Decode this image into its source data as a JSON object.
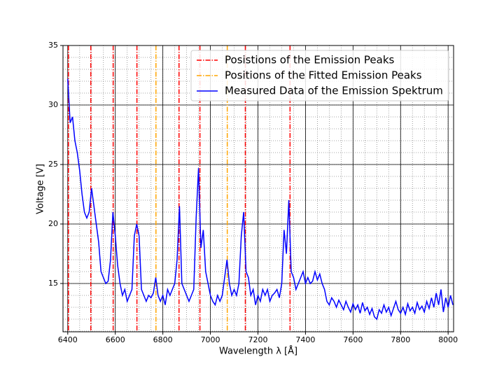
{
  "chart_data": {
    "type": "line",
    "xlabel": "Wavelength λ [Å]",
    "ylabel": "Voltage [V]",
    "xlim": [
      6380,
      8023
    ],
    "ylim": [
      10.94,
      35
    ],
    "xticks": [
      6400,
      6600,
      6800,
      7000,
      7200,
      7400,
      7600,
      7800,
      8000
    ],
    "yticks": [
      15,
      20,
      25,
      30,
      35
    ],
    "grid": true,
    "minor_grid": true,
    "legend": "upper right",
    "vlines": [
      {
        "name": "Posistions of the Emission Peaks",
        "color": "#ff0000",
        "x": [
          6403,
          6497,
          6591,
          6691,
          6868,
          6956,
          7147,
          7335
        ]
      },
      {
        "name": "Positions of the Fitted Emission Peaks",
        "color": "#ffa500",
        "x": [
          6771,
          7071
        ]
      }
    ],
    "series": [
      {
        "name": "Measured Data of the Emission Spektrum",
        "color": "#0000ff",
        "x": [
          6400,
          6410,
          6420,
          6430,
          6440,
          6450,
          6460,
          6470,
          6480,
          6490,
          6500,
          6510,
          6520,
          6530,
          6540,
          6550,
          6560,
          6570,
          6580,
          6590,
          6600,
          6610,
          6620,
          6630,
          6640,
          6650,
          6660,
          6670,
          6680,
          6690,
          6700,
          6710,
          6720,
          6730,
          6740,
          6750,
          6760,
          6770,
          6780,
          6790,
          6800,
          6810,
          6820,
          6830,
          6840,
          6850,
          6860,
          6870,
          6880,
          6890,
          6900,
          6910,
          6920,
          6930,
          6940,
          6950,
          6960,
          6970,
          6980,
          6990,
          7000,
          7010,
          7020,
          7030,
          7040,
          7050,
          7060,
          7070,
          7080,
          7090,
          7100,
          7110,
          7120,
          7130,
          7140,
          7150,
          7160,
          7170,
          7180,
          7190,
          7200,
          7210,
          7220,
          7230,
          7240,
          7250,
          7260,
          7270,
          7280,
          7290,
          7300,
          7310,
          7320,
          7330,
          7340,
          7350,
          7360,
          7370,
          7380,
          7390,
          7400,
          7410,
          7420,
          7430,
          7440,
          7450,
          7460,
          7470,
          7480,
          7490,
          7500,
          7510,
          7520,
          7530,
          7540,
          7550,
          7560,
          7570,
          7580,
          7590,
          7600,
          7610,
          7620,
          7630,
          7640,
          7650,
          7660,
          7670,
          7680,
          7690,
          7700,
          7710,
          7720,
          7730,
          7740,
          7750,
          7760,
          7770,
          7780,
          7790,
          7800,
          7810,
          7820,
          7830,
          7840,
          7850,
          7860,
          7870,
          7880,
          7890,
          7900,
          7910,
          7920,
          7930,
          7940,
          7950,
          7960,
          7970,
          7980,
          7990,
          8000,
          8010,
          8020
        ],
        "values": [
          32.2,
          28.5,
          29,
          27,
          26,
          24.5,
          22.5,
          21,
          20.5,
          21,
          23,
          21.5,
          20,
          18.5,
          16,
          15.5,
          15,
          15.2,
          17,
          21,
          19,
          16.5,
          15,
          14,
          14.5,
          13.5,
          14,
          14.5,
          19,
          20,
          19,
          14.5,
          14,
          13.5,
          14,
          13.8,
          14.2,
          15.5,
          14,
          13.5,
          14,
          13.2,
          14.5,
          14,
          14.5,
          15,
          17,
          21.5,
          15,
          14.5,
          14,
          13.5,
          14,
          14.5,
          20.5,
          24.7,
          18,
          19.5,
          16,
          15,
          14,
          13.5,
          13.2,
          14,
          13.5,
          14,
          15.5,
          17,
          15,
          14,
          14.5,
          14,
          15,
          19,
          21,
          16,
          15.5,
          14,
          14.5,
          13.2,
          14,
          13.5,
          14.5,
          14,
          14.5,
          13.5,
          14,
          14.2,
          14.5,
          13.8,
          15,
          19.5,
          17.5,
          22,
          16,
          15.5,
          14.5,
          15,
          15.5,
          16,
          15,
          15.5,
          15,
          15.2,
          16,
          15.3,
          15.8,
          15,
          14.5,
          13.5,
          13.2,
          13.8,
          13.5,
          13,
          13.6,
          13.2,
          12.8,
          13.5,
          13,
          12.6,
          13.3,
          12.8,
          13.2,
          12.5,
          13.4,
          12.7,
          13,
          12.4,
          12.9,
          12.2,
          12,
          12.8,
          12.5,
          13.2,
          12.6,
          13,
          12.3,
          12.9,
          13.5,
          12.8,
          12.5,
          13,
          12.4,
          13.3,
          12.7,
          13,
          12.5,
          13.4,
          12.8,
          13.1,
          12.6,
          13.5,
          12.9,
          13.8,
          13,
          14.2,
          13.2,
          14.5,
          12.6,
          13.8,
          13,
          14,
          13.2
        ]
      }
    ]
  }
}
